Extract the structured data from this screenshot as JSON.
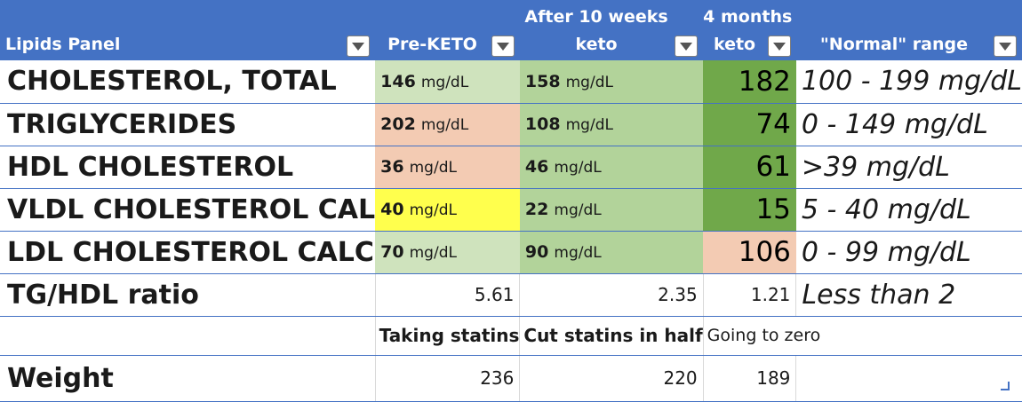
{
  "header": {
    "col_name": "Lipids Panel",
    "col_pre": "Pre-KETO",
    "col_10w_line1": "After 10 weeks",
    "col_10w_line2": "keto",
    "col_4m_line1": "4 months",
    "col_4m_line2": "keto",
    "col_range": "\"Normal\" range"
  },
  "rows": [
    {
      "name": "CHOLESTEROL, TOTAL",
      "pre": "146",
      "w10": "158",
      "m4": "182",
      "range": "100 - 199 mg/dL",
      "pre_color": "#cfe3bd",
      "w10_color": "#b2d39a",
      "m4_color": "#70a84a"
    },
    {
      "name": "TRIGLYCERIDES",
      "pre": "202",
      "w10": "108",
      "m4": "74",
      "range": "0 - 149 mg/dL",
      "pre_color": "#f3cbb3",
      "w10_color": "#b2d39a",
      "m4_color": "#70a84a"
    },
    {
      "name": "HDL CHOLESTEROL",
      "pre": "36",
      "w10": "46",
      "m4": "61",
      "range": ">39 mg/dL",
      "pre_color": "#f3cbb3",
      "w10_color": "#b2d39a",
      "m4_color": "#70a84a"
    },
    {
      "name": "VLDL CHOLESTEROL CAL",
      "pre": "40",
      "w10": "22",
      "m4": "15",
      "range": "5 - 40 mg/dL",
      "pre_color": "#ffff4d",
      "w10_color": "#b2d39a",
      "m4_color": "#70a84a"
    },
    {
      "name": "LDL CHOLESTEROL CALC",
      "pre": "70",
      "w10": "90",
      "m4": "106",
      "range": "0 - 99 mg/dL",
      "pre_color": "#cfe3bd",
      "w10_color": "#b2d39a",
      "m4_color": "#f3cbb3"
    }
  ],
  "unit": "mg/dL",
  "ratio_row": {
    "name": "TG/HDL ratio",
    "pre": "5.61",
    "w10": "2.35",
    "m4": "1.21",
    "range": "Less than 2"
  },
  "notes_row": {
    "pre": "Taking statins",
    "w10": "Cut statins in half",
    "m4": "Going to zero"
  },
  "weight_row": {
    "name": "Weight",
    "pre": "236",
    "w10": "220",
    "m4": "189"
  },
  "colors": {
    "header_bg": "#4472c4",
    "border": "#4472c4"
  }
}
